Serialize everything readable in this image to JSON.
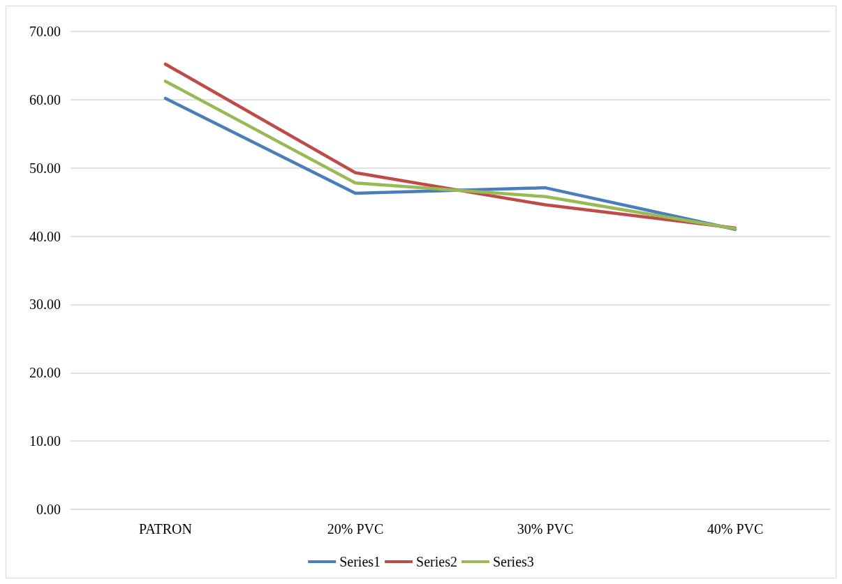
{
  "chart_data": {
    "type": "line",
    "categories": [
      "PATRON",
      "20% PVC",
      "30% PVC",
      "40% PVC"
    ],
    "series": [
      {
        "name": "Series1",
        "color": "#4a7ebb",
        "values": [
          60.2,
          46.3,
          47.1,
          41.0
        ]
      },
      {
        "name": "Series2",
        "color": "#be4b48",
        "values": [
          65.2,
          49.3,
          44.6,
          41.2
        ]
      },
      {
        "name": "Series3",
        "color": "#98b954",
        "values": [
          62.7,
          47.8,
          45.8,
          41.1
        ]
      }
    ],
    "ylim": [
      0,
      70
    ],
    "yticks": [
      {
        "value": 0,
        "label": "0.00"
      },
      {
        "value": 10,
        "label": "10.00"
      },
      {
        "value": 20,
        "label": "20.00"
      },
      {
        "value": 30,
        "label": "30.00"
      },
      {
        "value": 40,
        "label": "40.00"
      },
      {
        "value": 50,
        "label": "50.00"
      },
      {
        "value": 60,
        "label": "60.00"
      },
      {
        "value": 70,
        "label": "70.00"
      }
    ],
    "grid": "y",
    "legend": "bottom",
    "marker": "none",
    "line_style": "solid"
  }
}
